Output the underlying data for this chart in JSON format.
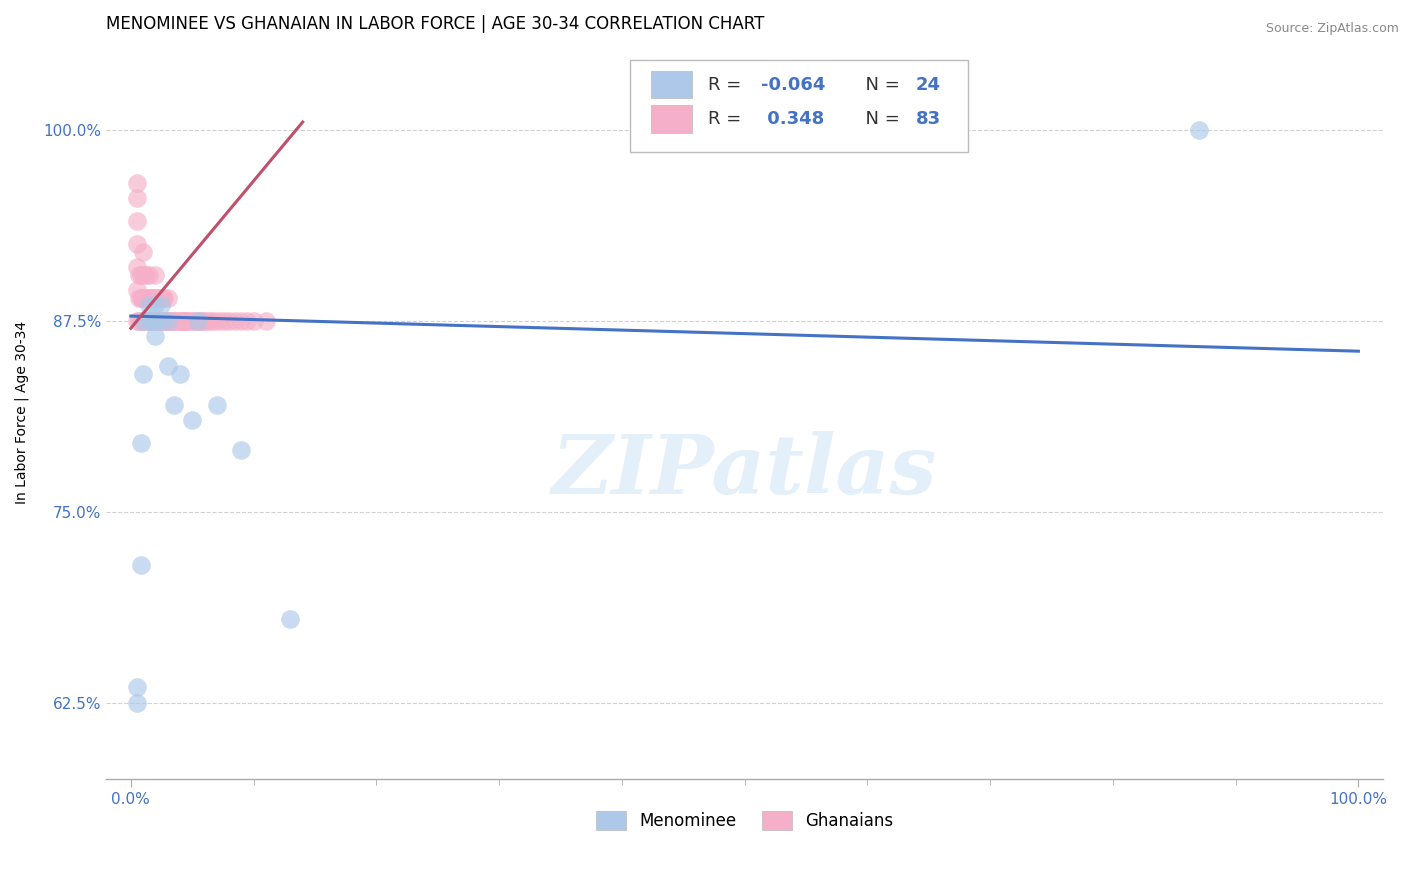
{
  "title": "MENOMINEE VS GHANAIAN IN LABOR FORCE | AGE 30-34 CORRELATION CHART",
  "source": "Source: ZipAtlas.com",
  "ylabel": "In Labor Force | Age 30-34",
  "xlim": [
    -0.02,
    1.02
  ],
  "ylim": [
    0.575,
    1.055
  ],
  "yticks": [
    0.625,
    0.75,
    0.875,
    1.0
  ],
  "ytick_labels": [
    "62.5%",
    "75.0%",
    "87.5%",
    "100.0%"
  ],
  "menominee_R": -0.064,
  "menominee_N": 24,
  "ghanaian_R": 0.348,
  "ghanaian_N": 83,
  "menominee_color": "#adc8e8",
  "ghanaian_color": "#f5afc8",
  "menominee_line_color": "#4472c4",
  "ghanaian_line_color": "#c0506a",
  "tick_color": "#4472c4",
  "watermark_text": "ZIPatlas",
  "menominee_x": [
    0.005,
    0.005,
    0.008,
    0.008,
    0.01,
    0.01,
    0.015,
    0.015,
    0.018,
    0.02,
    0.02,
    0.02,
    0.025,
    0.025,
    0.03,
    0.03,
    0.035,
    0.04,
    0.05,
    0.055,
    0.07,
    0.09,
    0.13,
    0.87
  ],
  "menominee_y": [
    0.625,
    0.635,
    0.715,
    0.795,
    0.84,
    0.875,
    0.875,
    0.885,
    0.875,
    0.865,
    0.875,
    0.885,
    0.875,
    0.885,
    0.845,
    0.875,
    0.82,
    0.84,
    0.81,
    0.875,
    0.82,
    0.79,
    0.68,
    1.0
  ],
  "ghanaian_x": [
    0.005,
    0.005,
    0.005,
    0.005,
    0.005,
    0.005,
    0.005,
    0.007,
    0.007,
    0.007,
    0.008,
    0.008,
    0.008,
    0.009,
    0.009,
    0.01,
    0.01,
    0.01,
    0.01,
    0.012,
    0.012,
    0.012,
    0.013,
    0.013,
    0.014,
    0.014,
    0.015,
    0.015,
    0.015,
    0.017,
    0.017,
    0.018,
    0.018,
    0.019,
    0.019,
    0.02,
    0.02,
    0.02,
    0.022,
    0.022,
    0.023,
    0.023,
    0.025,
    0.025,
    0.026,
    0.026,
    0.027,
    0.027,
    0.028,
    0.03,
    0.03,
    0.031,
    0.032,
    0.033,
    0.034,
    0.035,
    0.036,
    0.038,
    0.04,
    0.041,
    0.042,
    0.043,
    0.044,
    0.045,
    0.046,
    0.048,
    0.05,
    0.052,
    0.054,
    0.056,
    0.058,
    0.06,
    0.062,
    0.065,
    0.068,
    0.072,
    0.076,
    0.08,
    0.085,
    0.09,
    0.095,
    0.1,
    0.11
  ],
  "ghanaian_y": [
    0.875,
    0.895,
    0.91,
    0.925,
    0.94,
    0.955,
    0.965,
    0.875,
    0.89,
    0.905,
    0.875,
    0.89,
    0.905,
    0.875,
    0.89,
    0.875,
    0.89,
    0.905,
    0.92,
    0.875,
    0.89,
    0.905,
    0.875,
    0.89,
    0.875,
    0.89,
    0.875,
    0.89,
    0.905,
    0.875,
    0.89,
    0.875,
    0.89,
    0.875,
    0.89,
    0.875,
    0.89,
    0.905,
    0.875,
    0.89,
    0.875,
    0.89,
    0.875,
    0.89,
    0.875,
    0.89,
    0.875,
    0.89,
    0.875,
    0.875,
    0.89,
    0.875,
    0.875,
    0.875,
    0.875,
    0.875,
    0.875,
    0.875,
    0.875,
    0.875,
    0.875,
    0.875,
    0.875,
    0.875,
    0.875,
    0.875,
    0.875,
    0.875,
    0.875,
    0.875,
    0.875,
    0.875,
    0.875,
    0.875,
    0.875,
    0.875,
    0.875,
    0.875,
    0.875,
    0.875,
    0.875,
    0.875,
    0.875
  ],
  "blue_line_x": [
    0.0,
    1.0
  ],
  "blue_line_y": [
    0.878,
    0.855
  ],
  "pink_line_x0": 0.0,
  "pink_line_x1": 0.14,
  "pink_line_y0": 0.87,
  "pink_line_y1": 1.005,
  "background_color": "#ffffff",
  "grid_color": "#cccccc",
  "title_fontsize": 12,
  "axis_fontsize": 10,
  "tick_fontsize": 11
}
